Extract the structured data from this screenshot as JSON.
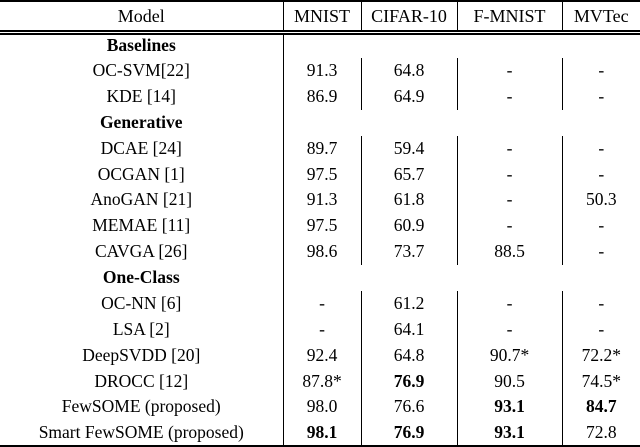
{
  "colors": {
    "background": "#ffffff",
    "text": "#000000",
    "rule": "#000000"
  },
  "table": {
    "columns": [
      {
        "key": "model",
        "label": "Model"
      },
      {
        "key": "mnist",
        "label": "MNIST"
      },
      {
        "key": "cifar10",
        "label": "CIFAR-10"
      },
      {
        "key": "fmnist",
        "label": "F-MNIST"
      },
      {
        "key": "mvtec",
        "label": "MVTec"
      }
    ],
    "rows": [
      {
        "type": "section",
        "label": "Baselines"
      },
      {
        "type": "data",
        "model": "OC-SVM[22]",
        "values": [
          {
            "text": "91.3",
            "bold": false
          },
          {
            "text": "64.8",
            "bold": false
          },
          {
            "text": "-",
            "bold": false
          },
          {
            "text": "-",
            "bold": false
          }
        ]
      },
      {
        "type": "data",
        "model": "KDE [14]",
        "values": [
          {
            "text": "86.9",
            "bold": false
          },
          {
            "text": "64.9",
            "bold": false
          },
          {
            "text": "-",
            "bold": false
          },
          {
            "text": "-",
            "bold": false
          }
        ]
      },
      {
        "type": "section",
        "label": "Generative"
      },
      {
        "type": "data",
        "model": "DCAE [24]",
        "values": [
          {
            "text": "89.7",
            "bold": false
          },
          {
            "text": "59.4",
            "bold": false
          },
          {
            "text": "-",
            "bold": false
          },
          {
            "text": "-",
            "bold": false
          }
        ]
      },
      {
        "type": "data",
        "model": "OCGAN [1]",
        "values": [
          {
            "text": "97.5",
            "bold": false
          },
          {
            "text": "65.7",
            "bold": false
          },
          {
            "text": "-",
            "bold": false
          },
          {
            "text": "-",
            "bold": false
          }
        ]
      },
      {
        "type": "data",
        "model": "AnoGAN [21]",
        "values": [
          {
            "text": "91.3",
            "bold": false
          },
          {
            "text": "61.8",
            "bold": false
          },
          {
            "text": "-",
            "bold": false
          },
          {
            "text": "50.3",
            "bold": false
          }
        ]
      },
      {
        "type": "data",
        "model": "MEMAE [11]",
        "values": [
          {
            "text": "97.5",
            "bold": false
          },
          {
            "text": "60.9",
            "bold": false
          },
          {
            "text": "-",
            "bold": false
          },
          {
            "text": "-",
            "bold": false
          }
        ]
      },
      {
        "type": "data",
        "model": "CAVGA [26]",
        "values": [
          {
            "text": "98.6",
            "bold": false
          },
          {
            "text": "73.7",
            "bold": false
          },
          {
            "text": "88.5",
            "bold": false
          },
          {
            "text": "-",
            "bold": false
          }
        ]
      },
      {
        "type": "section",
        "label": "One-Class"
      },
      {
        "type": "data",
        "model": "OC-NN [6]",
        "values": [
          {
            "text": "-",
            "bold": false
          },
          {
            "text": "61.2",
            "bold": false
          },
          {
            "text": "-",
            "bold": false
          },
          {
            "text": "-",
            "bold": false
          }
        ]
      },
      {
        "type": "data",
        "model": "LSA [2]",
        "values": [
          {
            "text": "-",
            "bold": false
          },
          {
            "text": "64.1",
            "bold": false
          },
          {
            "text": "-",
            "bold": false
          },
          {
            "text": "-",
            "bold": false
          }
        ]
      },
      {
        "type": "data",
        "model": "DeepSVDD [20]",
        "values": [
          {
            "text": "92.4",
            "bold": false
          },
          {
            "text": "64.8",
            "bold": false
          },
          {
            "text": "90.7*",
            "bold": false
          },
          {
            "text": "72.2*",
            "bold": false
          }
        ]
      },
      {
        "type": "data",
        "model": "DROCC [12]",
        "values": [
          {
            "text": "87.8*",
            "bold": false
          },
          {
            "text": "76.9",
            "bold": true
          },
          {
            "text": "90.5",
            "bold": false
          },
          {
            "text": "74.5*",
            "bold": false
          }
        ]
      },
      {
        "type": "data",
        "model": "FewSOME (proposed)",
        "values": [
          {
            "text": "98.0",
            "bold": false
          },
          {
            "text": "76.6",
            "bold": false
          },
          {
            "text": "93.1",
            "bold": true
          },
          {
            "text": "84.7",
            "bold": true
          }
        ]
      },
      {
        "type": "data",
        "model": "Smart FewSOME (proposed)",
        "values": [
          {
            "text": "98.1",
            "bold": true
          },
          {
            "text": "76.9",
            "bold": true
          },
          {
            "text": "93.1",
            "bold": true
          },
          {
            "text": "72.8",
            "bold": false
          }
        ]
      }
    ]
  }
}
